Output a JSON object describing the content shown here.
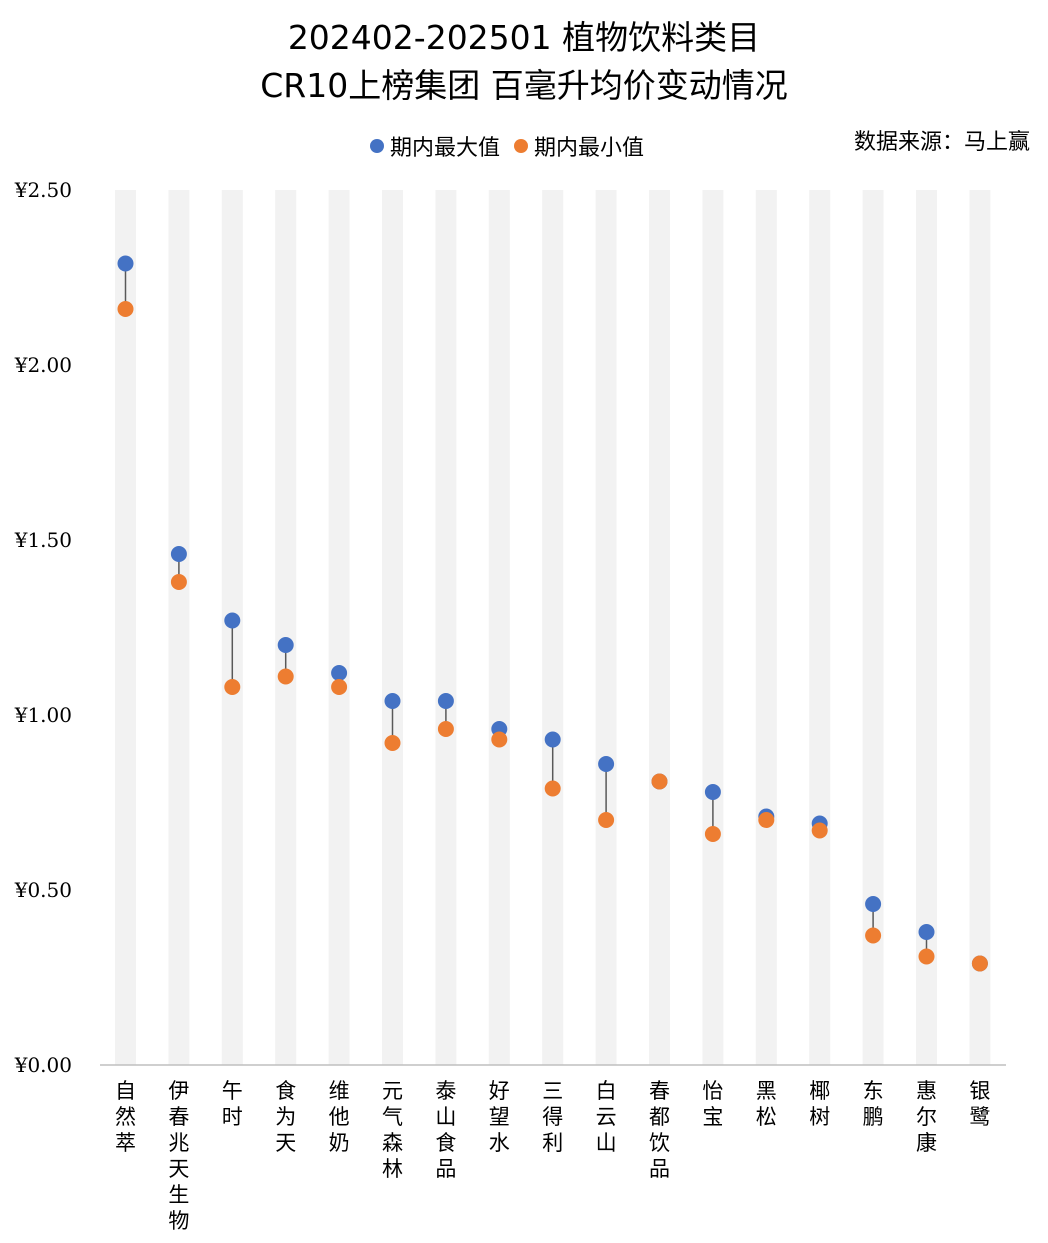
{
  "title": {
    "line1": "202402-202501 植物饮料类目",
    "line2": "CR10上榜集团 百毫升均价变动情况"
  },
  "source": "数据来源：马上赢",
  "colors": {
    "max": "#4472C4",
    "min": "#ED7D31",
    "band": "#F2F2F2",
    "connector": "#595959",
    "axis": "#BFBFBF"
  },
  "chart_data": {
    "type": "scatter",
    "title": "202402-202501 植物饮料类目 CR10上榜集团 百毫升均价变动情况",
    "xlabel": "",
    "ylabel": "",
    "ylim": [
      0,
      2.5
    ],
    "yticks": [
      0,
      0.5,
      1.0,
      1.5,
      2.0,
      2.5
    ],
    "ytick_labels": [
      "¥0.00",
      "¥0.50",
      "¥1.00",
      "¥1.50",
      "¥2.00",
      "¥2.50"
    ],
    "legend_position": "top",
    "categories": [
      "自然萃",
      "伊春兆天生物",
      "午时",
      "食为天",
      "维他奶",
      "元气森林",
      "泰山食品",
      "好望水",
      "三得利",
      "白云山",
      "春都饮品",
      "怡宝",
      "黑松",
      "椰树",
      "东鹏",
      "惠尔康",
      "银鹭"
    ],
    "series": [
      {
        "name": "期内最大值",
        "values": [
          2.29,
          1.46,
          1.27,
          1.2,
          1.12,
          1.04,
          1.04,
          0.96,
          0.93,
          0.86,
          0.81,
          0.78,
          0.71,
          0.69,
          0.46,
          0.38,
          0.29
        ]
      },
      {
        "name": "期内最小值",
        "values": [
          2.16,
          1.38,
          1.08,
          1.11,
          1.08,
          0.92,
          0.96,
          0.93,
          0.79,
          0.7,
          0.81,
          0.66,
          0.7,
          0.67,
          0.37,
          0.31,
          0.29
        ]
      }
    ]
  }
}
